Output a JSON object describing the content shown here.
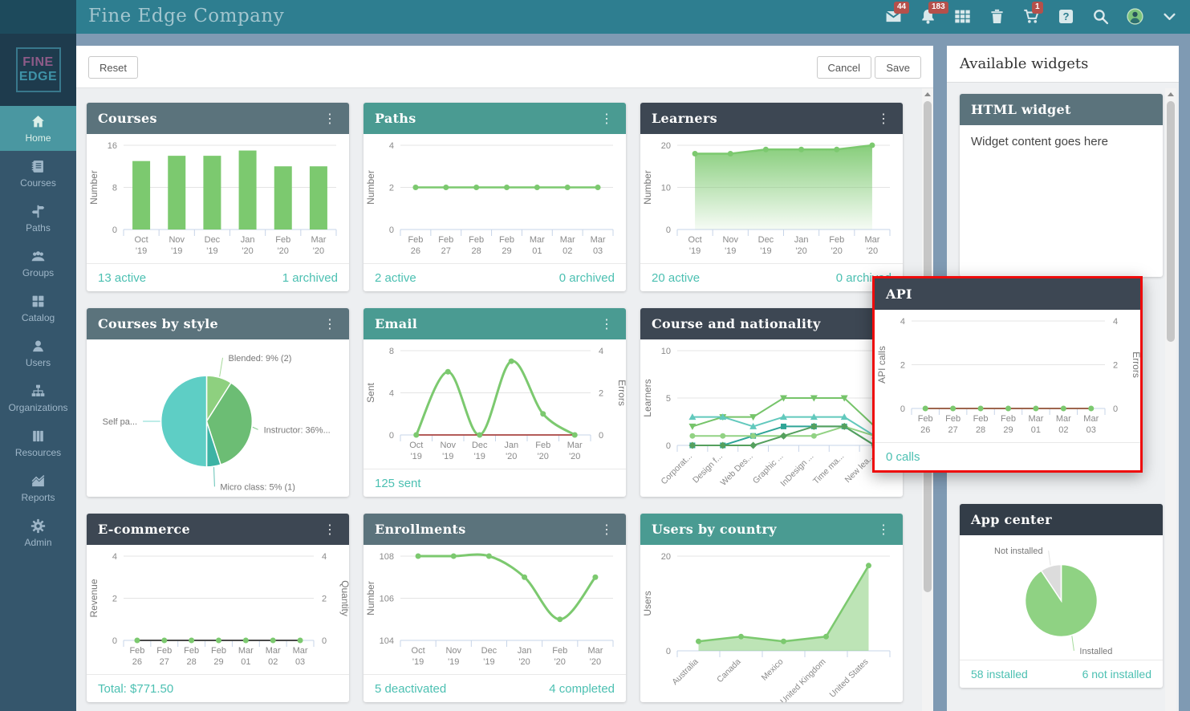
{
  "topbar": {
    "title": "Fine Edge Company",
    "icons": [
      {
        "name": "mail",
        "badge": "44"
      },
      {
        "name": "bell",
        "badge": "183"
      },
      {
        "name": "table"
      },
      {
        "name": "trash"
      },
      {
        "name": "cart",
        "badge": "1"
      },
      {
        "name": "help"
      },
      {
        "name": "search"
      },
      {
        "name": "avatar"
      },
      {
        "name": "chevron-down"
      }
    ]
  },
  "sidebar": {
    "logo": {
      "line1": "FINE",
      "line2": "EDGE"
    },
    "items": [
      {
        "icon": "home",
        "label": "Home",
        "active": true
      },
      {
        "icon": "courses",
        "label": "Courses"
      },
      {
        "icon": "paths",
        "label": "Paths"
      },
      {
        "icon": "groups",
        "label": "Groups"
      },
      {
        "icon": "catalog",
        "label": "Catalog"
      },
      {
        "icon": "users",
        "label": "Users"
      },
      {
        "icon": "organizations",
        "label": "Organizations"
      },
      {
        "icon": "resources",
        "label": "Resources"
      },
      {
        "icon": "reports",
        "label": "Reports"
      },
      {
        "icon": "admin",
        "label": "Admin"
      }
    ]
  },
  "toolbar": {
    "reset": "Reset",
    "cancel": "Cancel",
    "save": "Save"
  },
  "colors": {
    "topbar": "#2e7e90",
    "accent_teal": "#4cc0b2",
    "header_slate": "#5b737c",
    "header_teal": "#4a9b92",
    "header_charcoal": "#3d4753",
    "chart_green": "#7cc96f",
    "chart_red": "#aa4643",
    "highlight_red": "#ee0b0b"
  },
  "widgets": [
    {
      "id": "courses",
      "title": "Courses",
      "header_color": "#5b737c",
      "footer_left": "13 active",
      "footer_right": "1 archived",
      "chart_data": {
        "type": "bar",
        "categories": [
          "Oct '19",
          "Nov '19",
          "Dec '19",
          "Jan '20",
          "Feb '20",
          "Mar '20"
        ],
        "values": [
          13,
          14,
          14,
          15,
          12,
          12
        ],
        "ylabel": "Number",
        "yticks": [
          0,
          8,
          16
        ],
        "color": "#7cc96f"
      }
    },
    {
      "id": "paths",
      "title": "Paths",
      "header_color": "#4a9b92",
      "footer_left": "2 active",
      "footer_right": "0 archived",
      "chart_data": {
        "type": "line",
        "categories": [
          "Feb 26",
          "Feb 27",
          "Feb 28",
          "Feb 29",
          "Mar 01",
          "Mar 02",
          "Mar 03"
        ],
        "ylabel": "Number",
        "yticks": [
          0,
          2,
          4
        ],
        "series": [
          {
            "color": "#7cc96f",
            "marker": "circle",
            "width": 2.5,
            "values": [
              2,
              2,
              2,
              2,
              2,
              2,
              2
            ]
          }
        ]
      }
    },
    {
      "id": "learners",
      "title": "Learners",
      "header_color": "#3d4753",
      "footer_left": "20 active",
      "footer_right": "0 archived",
      "chart_data": {
        "type": "area",
        "fill": "gradient",
        "categories": [
          "Oct '19",
          "Nov '19",
          "Dec '19",
          "Jan '20",
          "Feb '20",
          "Mar '20"
        ],
        "values": [
          18,
          18,
          19,
          19,
          19,
          20
        ],
        "ylabel": "Number",
        "yticks": [
          0,
          10,
          20
        ],
        "color": "#7cc96f",
        "marker": "circle"
      }
    },
    {
      "id": "courses_by_style",
      "title": "Courses by style",
      "header_color": "#5b737c",
      "chart_data": {
        "type": "pie",
        "slices": [
          {
            "label": "Blended: 9% (2)",
            "value": 9,
            "color": "#8ed07f"
          },
          {
            "label": "Instructor: 36%...",
            "value": 36,
            "color": "#6cbd74"
          },
          {
            "label": "Micro class: 5% (1)",
            "value": 5,
            "color": "#3cb3a4"
          },
          {
            "label": "Self pa...",
            "value": 50,
            "color": "#5ecec5"
          }
        ]
      }
    },
    {
      "id": "email",
      "title": "Email",
      "header_color": "#4a9b92",
      "footer_left": "125 sent",
      "chart_data": {
        "type": "line",
        "categories": [
          "Oct '19",
          "Nov '19",
          "Dec '19",
          "Jan '20",
          "Feb '20",
          "Mar '20"
        ],
        "ylabel": "Sent",
        "yticks": [
          0,
          4,
          8
        ],
        "y2label": "Errors",
        "y2ticks": [
          0,
          2,
          4
        ],
        "series": [
          {
            "name": "Sent",
            "color": "#7cc96f",
            "marker": "circle",
            "smooth": true,
            "width": 3,
            "values": [
              0,
              6,
              0,
              7,
              2,
              0
            ]
          },
          {
            "name": "Errors",
            "color": "#aa4643",
            "width": 1.8,
            "axis": 2,
            "values": [
              0,
              0,
              0,
              0,
              0,
              0
            ]
          }
        ]
      }
    },
    {
      "id": "course_nationality",
      "title": "Course and nationality",
      "header_color": "#3d4753",
      "chart_data": {
        "type": "line",
        "rotate_labels": true,
        "categories": [
          "Corporat...",
          "Design f...",
          "Web Des...",
          "Graphic ...",
          "InDesign ...",
          "Time ma...",
          "New lea..."
        ],
        "ylabel": "Learners",
        "yticks": [
          0,
          5,
          10
        ],
        "series": [
          {
            "color": "#76c46a",
            "marker": "triangle-down",
            "width": 2,
            "values": [
              2,
              3,
              3,
              5,
              5,
              5,
              2
            ]
          },
          {
            "color": "#62c9bd",
            "marker": "triangle-up",
            "width": 2,
            "values": [
              3,
              3,
              2,
              3,
              3,
              3,
              1
            ]
          },
          {
            "color": "#2fa597",
            "marker": "square",
            "width": 2,
            "values": [
              0,
              0,
              1,
              2,
              2,
              2,
              0
            ]
          },
          {
            "color": "#92d284",
            "marker": "circle",
            "width": 2,
            "values": [
              1,
              1,
              1,
              1,
              1,
              2,
              1
            ]
          },
          {
            "color": "#55a05e",
            "marker": "diamond",
            "width": 2,
            "values": [
              0,
              0,
              0,
              1,
              2,
              2,
              0
            ]
          }
        ]
      }
    },
    {
      "id": "ecommerce",
      "title": "E-commerce",
      "header_color": "#3d4753",
      "footer_left": "Total: $771.50",
      "chart_data": {
        "type": "line",
        "categories": [
          "Feb 26",
          "Feb 27",
          "Feb 28",
          "Feb 29",
          "Mar 01",
          "Mar 02",
          "Mar 03"
        ],
        "ylabel": "Revenue",
        "yticks": [
          0,
          2,
          4
        ],
        "y2label": "Quantity",
        "y2ticks": [
          0,
          2,
          4
        ],
        "series": [
          {
            "name": "Revenue",
            "color": "#4a4a4a",
            "width": 2,
            "marker": "circle",
            "marker_color": "#7cc96f",
            "values": [
              0,
              0,
              0,
              0,
              0,
              0,
              0
            ]
          }
        ]
      }
    },
    {
      "id": "enrollments",
      "title": "Enrollments",
      "header_color": "#5b737c",
      "footer_left": "5 deactivated",
      "footer_right": "4 completed",
      "chart_data": {
        "type": "line",
        "categories": [
          "Oct '19",
          "Nov '19",
          "Dec '19",
          "Jan '20",
          "Feb '20",
          "Mar '20"
        ],
        "ylabel": "Number",
        "yticks": [
          104,
          106,
          108
        ],
        "series": [
          {
            "color": "#7cc96f",
            "marker": "circle",
            "smooth": true,
            "width": 3,
            "values": [
              108,
              108,
              108,
              107,
              105,
              107
            ]
          }
        ]
      }
    },
    {
      "id": "users_by_country",
      "title": "Users by country",
      "header_color": "#4a9b92",
      "chart_data": {
        "type": "area",
        "fill": "flat",
        "rotate_labels": true,
        "categories": [
          "Australia",
          "Canada",
          "Mexico",
          "United Kingdom",
          "United States"
        ],
        "values": [
          2,
          3,
          2,
          3,
          18
        ],
        "ylabel": "Users",
        "yticks": [
          0,
          20
        ],
        "color": "#7cc96f",
        "marker": "circle"
      }
    }
  ],
  "api_widget": {
    "title": "API",
    "header_color": "#3d4753",
    "footer_left": "0 calls",
    "highlight_color": "#ee0b0b",
    "chart_data": {
      "type": "line",
      "categories": [
        "Feb 26",
        "Feb 27",
        "Feb 28",
        "Feb 29",
        "Mar 01",
        "Mar 02",
        "Mar 03"
      ],
      "ylabel": "API calls",
      "yticks": [
        0,
        2,
        4
      ],
      "y2label": "Errors",
      "y2ticks": [
        0,
        2,
        4
      ],
      "series": [
        {
          "name": "API calls",
          "color": "#7cc96f",
          "marker": "circle",
          "width": 2,
          "values": [
            0,
            0,
            0,
            0,
            0,
            0,
            0
          ]
        },
        {
          "name": "Errors",
          "color": "#aa4643",
          "width": 1.5,
          "axis": 2,
          "values": [
            0,
            0,
            0,
            0,
            0,
            0,
            0
          ]
        }
      ]
    }
  },
  "right_panel": {
    "title": "Available widgets",
    "html_widget": {
      "title": "HTML widget",
      "header_color": "#5b737c",
      "content": "Widget content goes here"
    },
    "app_center": {
      "title": "App center",
      "header_color": "#333d48",
      "footer_left": "58 installed",
      "footer_right": "6 not installed",
      "chart_data": {
        "type": "pie",
        "slices": [
          {
            "label": "Installed",
            "value": 58,
            "color": "#8fd283"
          },
          {
            "label": "Not installed",
            "value": 6,
            "color": "#dcdcdc"
          }
        ]
      }
    }
  }
}
